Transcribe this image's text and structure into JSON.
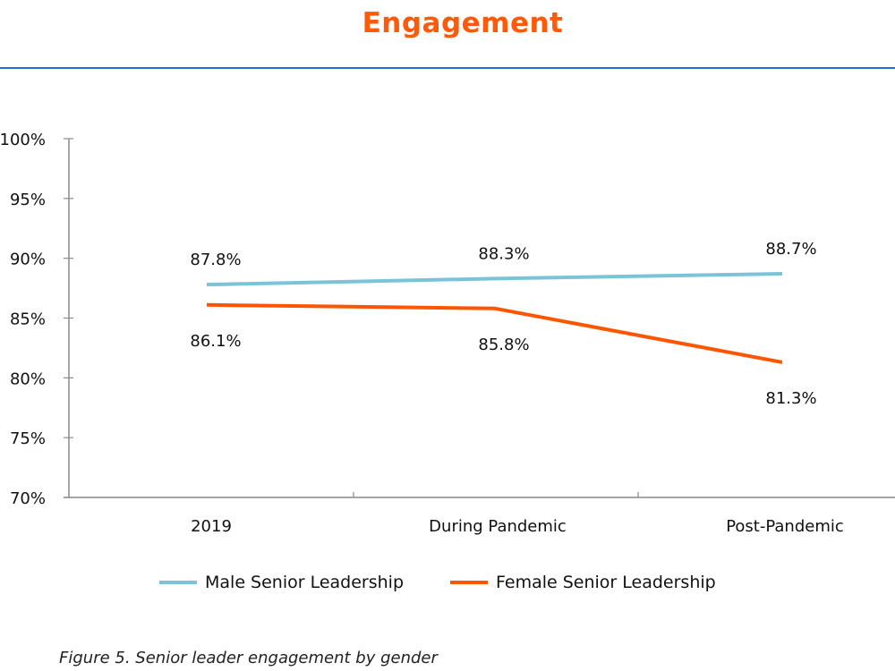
{
  "page": {
    "title": "Engagement",
    "caption": "Figure 5. Senior leader engagement by gender"
  },
  "colors": {
    "title": "#ff5a0a",
    "rule": "#1f6fcf",
    "male": "#7ac4d8",
    "female": "#ff5500",
    "axis": "#8a8a8a"
  },
  "chart_data": {
    "type": "line",
    "title": "Engagement",
    "xlabel": "",
    "ylabel": "",
    "categories": [
      "2019",
      "During Pandemic",
      "Post-Pandemic"
    ],
    "ylim": [
      70,
      100
    ],
    "yticks": [
      70,
      75,
      80,
      85,
      90,
      95,
      100
    ],
    "ytick_labels": [
      "70%",
      "75%",
      "80%",
      "85%",
      "90%",
      "95%",
      "100%"
    ],
    "grid": false,
    "legend_position": "bottom",
    "series": [
      {
        "name": "Male Senior Leadership",
        "values": [
          87.8,
          88.3,
          88.7
        ],
        "labels": [
          "87.8%",
          "88.3%",
          "88.7%"
        ],
        "label_position": "above",
        "color": "#7ac4d8"
      },
      {
        "name": "Female Senior Leadership",
        "values": [
          86.1,
          85.8,
          81.3
        ],
        "labels": [
          "86.1%",
          "85.8%",
          "81.3%"
        ],
        "label_position": "below",
        "color": "#ff5500"
      }
    ]
  }
}
